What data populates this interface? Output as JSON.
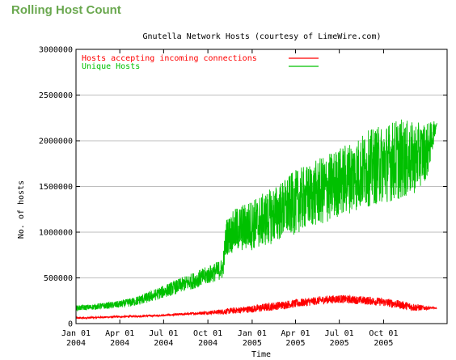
{
  "page": {
    "heading": "Rolling Host Count"
  },
  "chart_data": {
    "type": "line",
    "title": "Gnutella Network Hosts (courtesy of LimeWire.com)",
    "xlabel": "Time",
    "ylabel": "No. of hosts",
    "xlim": [
      "2004-01-01",
      "2006-02-10"
    ],
    "ylim": [
      0,
      3000000
    ],
    "yticks": [
      0,
      500000,
      1000000,
      1500000,
      2000000,
      2500000,
      3000000
    ],
    "ytick_labels": [
      "0",
      "500000",
      "1000000",
      "1500000",
      "2000000",
      "2500000",
      "3000000"
    ],
    "xticks": [
      "2004-01-01",
      "2004-04-01",
      "2004-07-01",
      "2004-10-01",
      "2005-01-01",
      "2005-04-01",
      "2005-07-01",
      "2005-10-01"
    ],
    "xtick_labels": [
      [
        "Jan 01",
        "2004"
      ],
      [
        "Apr 01",
        "2004"
      ],
      [
        "Jul 01",
        "2004"
      ],
      [
        "Oct 01",
        "2004"
      ],
      [
        "Jan 01",
        "2005"
      ],
      [
        "Apr 01",
        "2005"
      ],
      [
        "Jul 01",
        "2005"
      ],
      [
        "Oct 01",
        "2005"
      ]
    ],
    "grid": true,
    "legend": "top-left",
    "series": [
      {
        "name": "Hosts accepting incoming connections",
        "color": "#ff0000",
        "x": [
          "2004-01-01",
          "2004-02-01",
          "2004-03-01",
          "2004-04-01",
          "2004-05-01",
          "2004-06-01",
          "2004-07-01",
          "2004-08-01",
          "2004-09-01",
          "2004-10-01",
          "2004-11-01",
          "2004-12-01",
          "2005-01-01",
          "2005-02-01",
          "2005-03-01",
          "2005-04-01",
          "2005-05-01",
          "2005-06-01",
          "2005-07-01",
          "2005-08-01",
          "2005-09-01",
          "2005-10-01",
          "2005-11-01",
          "2005-12-01",
          "2006-01-01",
          "2006-01-20"
        ],
        "y": [
          60000,
          65000,
          70000,
          75000,
          80000,
          85000,
          90000,
          100000,
          110000,
          120000,
          130000,
          145000,
          160000,
          180000,
          200000,
          220000,
          240000,
          260000,
          270000,
          260000,
          250000,
          235000,
          210000,
          180000,
          170000,
          170000
        ],
        "noise": [
          10000,
          10000,
          10000,
          10000,
          10000,
          10000,
          10000,
          12000,
          15000,
          20000,
          30000,
          35000,
          40000,
          45000,
          45000,
          45000,
          45000,
          45000,
          45000,
          45000,
          45000,
          45000,
          45000,
          45000,
          20000,
          5000
        ]
      },
      {
        "name": "Unique Hosts",
        "color": "#00c000",
        "x": [
          "2004-01-01",
          "2004-02-01",
          "2004-03-01",
          "2004-04-01",
          "2004-05-01",
          "2004-06-01",
          "2004-07-01",
          "2004-08-01",
          "2004-09-01",
          "2004-10-01",
          "2004-11-01",
          "2004-11-08",
          "2004-12-01",
          "2005-01-01",
          "2005-02-01",
          "2005-03-01",
          "2005-04-01",
          "2005-05-01",
          "2005-06-01",
          "2005-07-01",
          "2005-08-01",
          "2005-09-01",
          "2005-10-01",
          "2005-11-01",
          "2005-12-01",
          "2006-01-01",
          "2006-01-20"
        ],
        "y": [
          170000,
          180000,
          195000,
          210000,
          240000,
          290000,
          350000,
          410000,
          470000,
          530000,
          600000,
          950000,
          1030000,
          1080000,
          1150000,
          1230000,
          1330000,
          1400000,
          1460000,
          1550000,
          1620000,
          1700000,
          1750000,
          1800000,
          1800000,
          1900000,
          2200000
        ],
        "noise": [
          30000,
          30000,
          35000,
          40000,
          50000,
          60000,
          70000,
          80000,
          90000,
          100000,
          110000,
          200000,
          250000,
          280000,
          300000,
          320000,
          350000,
          350000,
          380000,
          380000,
          400000,
          420000,
          430000,
          450000,
          400000,
          300000,
          20000
        ]
      }
    ]
  }
}
